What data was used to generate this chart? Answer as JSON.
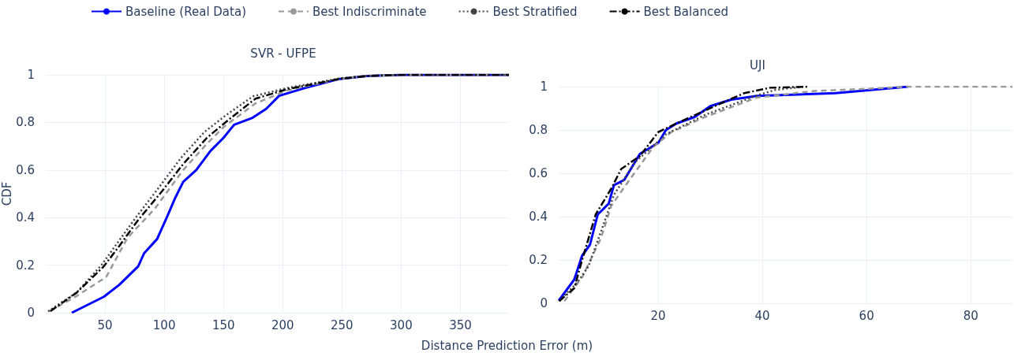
{
  "chart_data": [
    {
      "type": "line",
      "title": "SVR - UFPE",
      "xlabel": "Distance Prediction Error (m)",
      "ylabel": "CDF",
      "xlim": [
        0,
        391
      ],
      "xticks": [
        50,
        100,
        150,
        200,
        250,
        300,
        350
      ],
      "ylim": [
        0,
        1
      ],
      "yticks": [
        0,
        0.2,
        0.4,
        0.6,
        0.8,
        1
      ],
      "grid": true,
      "legend": "top",
      "marker": "none",
      "series": [
        {
          "name": "Baseline (Real Data)",
          "color": "#0000ff",
          "line_style": "solid",
          "x": [
            22,
            49,
            62,
            78,
            83,
            94,
            103,
            109,
            116,
            127,
            139,
            150,
            159,
            174,
            186,
            197,
            219,
            248,
            271,
            300,
            391
          ],
          "values": [
            0,
            0.067,
            0.117,
            0.195,
            0.25,
            0.31,
            0.41,
            0.48,
            0.55,
            0.6,
            0.68,
            0.735,
            0.79,
            0.818,
            0.857,
            0.912,
            0.945,
            0.983,
            0.995,
            1,
            1
          ]
        },
        {
          "name": "Best Indiscriminate",
          "color": "#999999",
          "line_style": "dashed",
          "x": [
            3,
            26,
            51,
            69,
            92,
            116,
            136,
            150,
            177,
            204,
            248,
            271,
            300,
            391
          ],
          "values": [
            0.006,
            0.07,
            0.15,
            0.315,
            0.437,
            0.6,
            0.71,
            0.78,
            0.88,
            0.935,
            0.983,
            0.995,
            1,
            1
          ]
        },
        {
          "name": "Best Stratified",
          "color": "#444444",
          "line_style": "dotted",
          "x": [
            2,
            26,
            47,
            60,
            76,
            96,
            114,
            134,
            152,
            175,
            204,
            248,
            271,
            300,
            391
          ],
          "values": [
            0.006,
            0.085,
            0.2,
            0.29,
            0.4,
            0.53,
            0.65,
            0.76,
            0.83,
            0.91,
            0.945,
            0.985,
            0.996,
            1,
            1
          ]
        },
        {
          "name": "Best Balanced",
          "color": "#000000",
          "line_style": "dashdot",
          "x": [
            4,
            26,
            49,
            62,
            78,
            98,
            116,
            136,
            154,
            177,
            204,
            248,
            271,
            300,
            391
          ],
          "values": [
            0.007,
            0.084,
            0.195,
            0.28,
            0.39,
            0.51,
            0.625,
            0.735,
            0.81,
            0.9,
            0.94,
            0.983,
            0.995,
            1,
            1
          ]
        }
      ]
    },
    {
      "type": "line",
      "title": "UJI",
      "xlim": [
        0.9,
        88
      ],
      "xticks": [
        20,
        40,
        60,
        80
      ],
      "ylim": [
        0,
        1
      ],
      "yticks": [
        0,
        0.2,
        0.4,
        0.6,
        0.8,
        1
      ],
      "grid": true,
      "legend": false,
      "marker": "none",
      "series": [
        {
          "color": "#0000ff",
          "line_style": "solid",
          "x": [
            0.9,
            3.9,
            5.4,
            6.9,
            8.4,
            10.5,
            11.5,
            13.5,
            16.5,
            20,
            21.5,
            23.5,
            27,
            30,
            34,
            39,
            54,
            68
          ],
          "values": [
            0.012,
            0.11,
            0.22,
            0.27,
            0.41,
            0.46,
            0.545,
            0.57,
            0.69,
            0.74,
            0.8,
            0.83,
            0.86,
            0.91,
            0.94,
            0.957,
            0.97,
            1
          ]
        },
        {
          "color": "#999999",
          "line_style": "dashed",
          "x": [
            2,
            5.4,
            9,
            11,
            14.5,
            19,
            22.5,
            29,
            39,
            50,
            60,
            68,
            88
          ],
          "values": [
            0.01,
            0.12,
            0.3,
            0.45,
            0.57,
            0.72,
            0.79,
            0.86,
            0.95,
            0.98,
            0.99,
            1,
            1
          ]
        },
        {
          "color": "#444444",
          "line_style": "dotted",
          "x": [
            1,
            4.6,
            6.6,
            9,
            11.5,
            15.5,
            21.5,
            29,
            39,
            42.5,
            48
          ],
          "values": [
            0.01,
            0.1,
            0.17,
            0.33,
            0.5,
            0.65,
            0.78,
            0.87,
            0.96,
            0.985,
            1
          ]
        },
        {
          "color": "#000000",
          "line_style": "dashdot",
          "x": [
            1,
            3.9,
            5.4,
            8,
            11,
            12.9,
            16.5,
            20,
            23.5,
            29,
            36.5,
            41.5,
            49
          ],
          "values": [
            0.01,
            0.07,
            0.2,
            0.41,
            0.53,
            0.62,
            0.68,
            0.79,
            0.83,
            0.89,
            0.97,
            0.995,
            1
          ]
        }
      ]
    }
  ]
}
